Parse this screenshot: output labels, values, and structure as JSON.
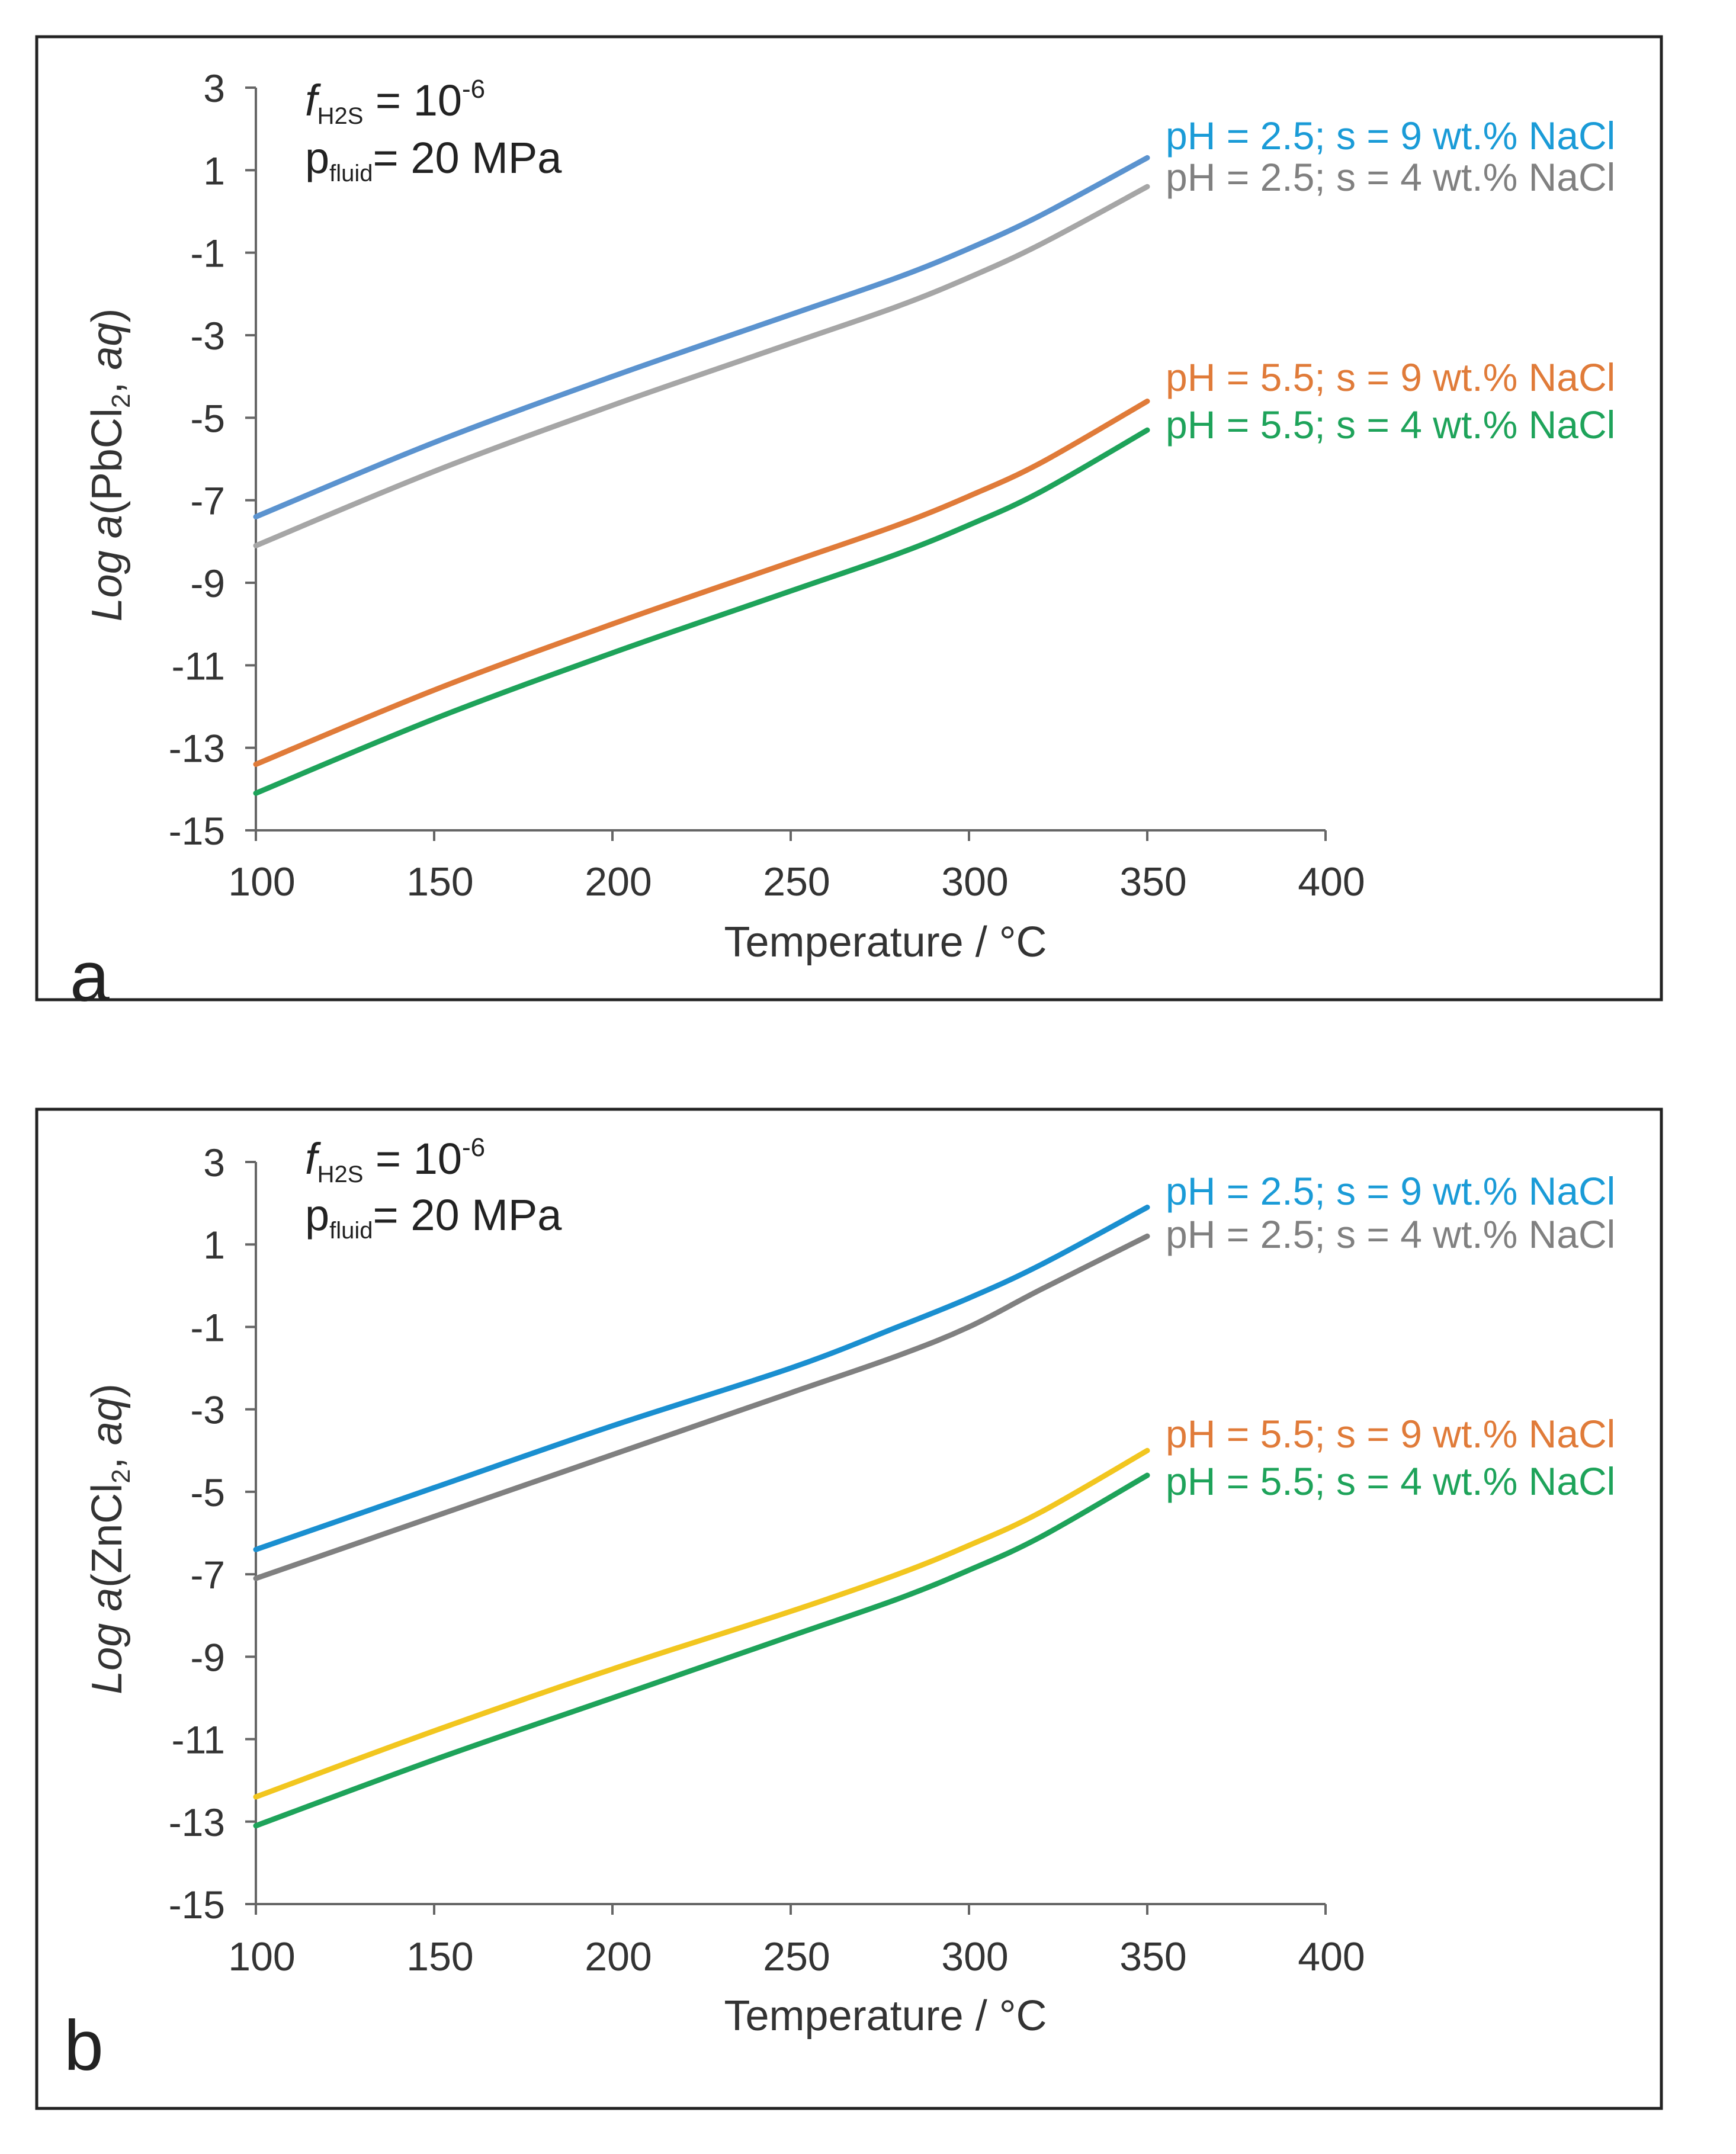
{
  "chart_data": [
    {
      "type": "line",
      "panel_letter": "a",
      "xlabel": "Temperature / °C",
      "ylabel": {
        "prefix": "Log ",
        "italic_a": "a",
        "open": "(PbCl",
        "sub": "2",
        "mid": ", ",
        "italic_aq": "aq",
        "close": ")"
      },
      "annotation": {
        "f_symbol": "f",
        "f_sub": "H2S",
        "f_value": " = 10",
        "f_exp": "-6",
        "p_symbol": "p",
        "p_sub": "fluid",
        "p_value": "= 20 MPa"
      },
      "xlim": [
        100,
        400
      ],
      "ylim": [
        -15,
        3
      ],
      "x_ticks": [
        "100",
        "150",
        "200",
        "250",
        "300",
        "350",
        "400"
      ],
      "y_ticks": [
        "3",
        "1",
        "-1",
        "-3",
        "-5",
        "-7",
        "-9",
        "-11",
        "-13",
        "-15"
      ],
      "x": [
        100,
        150,
        200,
        250,
        280,
        300,
        320,
        350
      ],
      "series": [
        {
          "name": "pH = 2.5; s = 9 wt.% NaCl",
          "color": "#5b93cf",
          "values": [
            -7.4,
            -5.6,
            -4.0,
            -2.5,
            -1.6,
            -0.9,
            -0.1,
            1.3
          ]
        },
        {
          "name": "pH = 2.5; s = 4 wt.% NaCl",
          "color": "#a6a6a6",
          "values": [
            -8.1,
            -6.3,
            -4.7,
            -3.2,
            -2.3,
            -1.6,
            -0.8,
            0.6
          ]
        },
        {
          "name": "pH = 5.5; s = 9 wt.% NaCl",
          "color": "#e07b39",
          "values": [
            -13.4,
            -11.6,
            -10.0,
            -8.5,
            -7.6,
            -6.9,
            -6.1,
            -4.6
          ]
        },
        {
          "name": "pH = 5.5; s = 4 wt.% NaCl",
          "color": "#1ea35a",
          "values": [
            -14.1,
            -12.3,
            -10.7,
            -9.2,
            -8.3,
            -7.6,
            -6.8,
            -5.3
          ]
        }
      ],
      "legend_colors": [
        "#1a9bd7",
        "#808080",
        "#e07b39",
        "#1ea35a"
      ]
    },
    {
      "type": "line",
      "panel_letter": "b",
      "xlabel": "Temperature / °C",
      "ylabel": {
        "prefix": "Log ",
        "italic_a": "a",
        "open": "(ZnCl",
        "sub": "2",
        "mid": ", ",
        "italic_aq": "aq",
        "close": ")"
      },
      "annotation": {
        "f_symbol": "f",
        "f_sub": "H2S",
        "f_value": " = 10",
        "f_exp": "-6",
        "p_symbol": "p",
        "p_sub": "fluid",
        "p_value": "= 20 MPa"
      },
      "xlim": [
        100,
        400
      ],
      "ylim": [
        -15,
        3
      ],
      "x_ticks": [
        "100",
        "150",
        "200",
        "250",
        "300",
        "350",
        "400"
      ],
      "y_ticks": [
        "3",
        "1",
        "-1",
        "-3",
        "-5",
        "-7",
        "-9",
        "-11",
        "-13",
        "-15"
      ],
      "x": [
        100,
        150,
        200,
        250,
        280,
        300,
        320,
        350
      ],
      "series": [
        {
          "name": "pH = 2.5; s = 9 wt.% NaCl",
          "color": "#1a8fd0",
          "values": [
            -6.4,
            -4.9,
            -3.4,
            -2.0,
            -1.0,
            -0.3,
            0.5,
            1.9
          ]
        },
        {
          "name": "pH = 2.5; s = 4 wt.% NaCl",
          "color": "#808080",
          "values": [
            -7.1,
            -5.6,
            -4.1,
            -2.6,
            -1.7,
            -1.0,
            -0.1,
            1.2
          ]
        },
        {
          "name": "pH = 5.5; s = 9 wt.% NaCl",
          "color": "#f2c61f",
          "values": [
            -12.4,
            -10.8,
            -9.3,
            -7.9,
            -7.0,
            -6.3,
            -5.5,
            -4.0
          ]
        },
        {
          "name": "pH = 5.5; s = 4 wt.% NaCl",
          "color": "#1ea35a",
          "values": [
            -13.1,
            -11.5,
            -10.0,
            -8.5,
            -7.6,
            -6.9,
            -6.1,
            -4.6
          ]
        }
      ],
      "legend_colors": [
        "#1a9bd7",
        "#808080",
        "#e07b39",
        "#1ea35a"
      ]
    }
  ]
}
